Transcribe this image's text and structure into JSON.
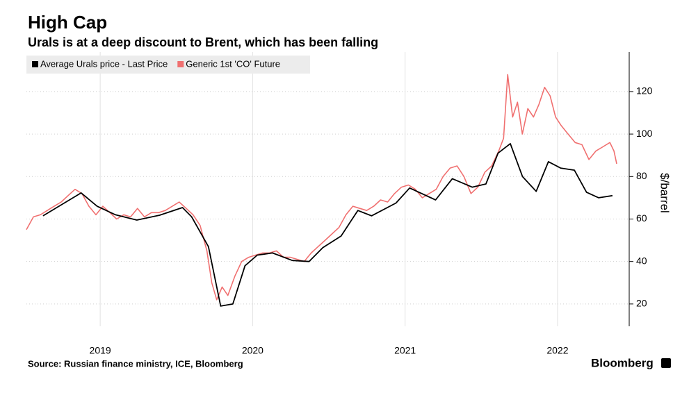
{
  "chart_data": {
    "type": "line",
    "title": "High Cap",
    "subtitle": "Urals is at a deep discount to Brent, which has been falling",
    "y_label": "$/barrel",
    "source": "Source: Russian finance ministry, ICE, Bloomberg",
    "brand": "Bloomberg",
    "xlim": [
      2019.016,
      2022.97
    ],
    "xticks": [
      {
        "value": 2019.5,
        "label": "2019"
      },
      {
        "value": 2020.5,
        "label": "2020"
      },
      {
        "value": 2021.5,
        "label": "2021"
      },
      {
        "value": 2022.5,
        "label": "2022"
      }
    ],
    "ylim": [
      9.5,
      138.6
    ],
    "yticks": [
      20,
      40,
      60,
      80,
      100,
      120
    ],
    "grid": true,
    "legend": "top-left",
    "series": [
      {
        "name": "Average Urals price - Last Price",
        "color": "#000000",
        "x": [
          2019.125,
          2019.375,
          2019.48,
          2019.6,
          2019.74,
          2019.89,
          2020.04,
          2020.1,
          2020.21,
          2020.29,
          2020.37,
          2020.45,
          2020.53,
          2020.63,
          2020.76,
          2020.87,
          2020.96,
          2021.08,
          2021.19,
          2021.28,
          2021.44,
          2021.53,
          2021.7,
          2021.81,
          2021.94,
          2022.03,
          2022.11,
          2022.19,
          2022.27,
          2022.36,
          2022.44,
          2022.52,
          2022.61,
          2022.69,
          2022.77,
          2022.86
        ],
        "values": [
          61.5,
          72.3,
          66,
          62,
          59.5,
          61.8,
          65.4,
          61,
          47,
          19,
          20,
          38,
          43,
          44,
          40.5,
          40,
          46.5,
          52,
          64,
          61.5,
          67.5,
          74.6,
          69,
          79,
          75,
          76.5,
          91,
          95.5,
          80,
          73,
          87,
          84,
          83,
          72.6,
          70,
          71
        ]
      },
      {
        "name": "Generic 1st 'CO' Future",
        "color": "#f07070",
        "x": [
          2019.016,
          2019.062,
          2019.107,
          2019.153,
          2019.198,
          2019.244,
          2019.289,
          2019.335,
          2019.38,
          2019.426,
          2019.472,
          2019.517,
          2019.563,
          2019.608,
          2019.654,
          2019.699,
          2019.745,
          2019.79,
          2019.836,
          2019.882,
          2019.927,
          2019.973,
          2020.018,
          2020.064,
          2020.109,
          2020.155,
          2020.2,
          2020.232,
          2020.264,
          2020.3,
          2020.337,
          2020.383,
          2020.428,
          2020.474,
          2020.519,
          2020.565,
          2020.61,
          2020.656,
          2020.702,
          2020.747,
          2020.793,
          2020.838,
          2020.884,
          2020.929,
          2020.975,
          2021.021,
          2021.066,
          2021.112,
          2021.157,
          2021.203,
          2021.248,
          2021.294,
          2021.339,
          2021.385,
          2021.431,
          2021.476,
          2021.522,
          2021.567,
          2021.613,
          2021.658,
          2021.704,
          2021.749,
          2021.795,
          2021.841,
          2021.886,
          2021.932,
          2021.977,
          2022.023,
          2022.068,
          2022.114,
          2022.146,
          2022.173,
          2022.205,
          2022.237,
          2022.269,
          2022.305,
          2022.342,
          2022.378,
          2022.415,
          2022.451,
          2022.487,
          2022.524,
          2022.569,
          2022.615,
          2022.66,
          2022.706,
          2022.751,
          2022.797,
          2022.843,
          2022.87,
          2022.888
        ],
        "values": [
          55,
          61,
          62,
          64,
          66,
          68,
          71,
          74,
          72,
          66,
          62,
          66,
          63,
          60,
          62,
          61,
          65,
          61,
          63,
          63,
          64,
          66,
          68,
          65,
          62,
          57,
          45,
          30,
          22,
          28,
          24,
          33,
          40,
          42,
          43,
          44,
          44,
          45,
          42,
          42,
          41,
          40,
          44,
          47,
          50,
          53,
          56,
          62,
          66,
          65,
          64,
          66,
          69,
          68,
          72,
          75,
          76,
          74,
          70,
          72,
          74,
          80,
          84,
          85,
          80,
          72,
          75,
          82,
          85,
          92,
          98,
          128,
          108,
          115,
          100,
          112,
          108,
          114,
          122,
          118,
          108,
          104,
          100,
          96,
          95,
          88,
          92,
          94,
          96,
          92,
          86
        ]
      }
    ]
  }
}
